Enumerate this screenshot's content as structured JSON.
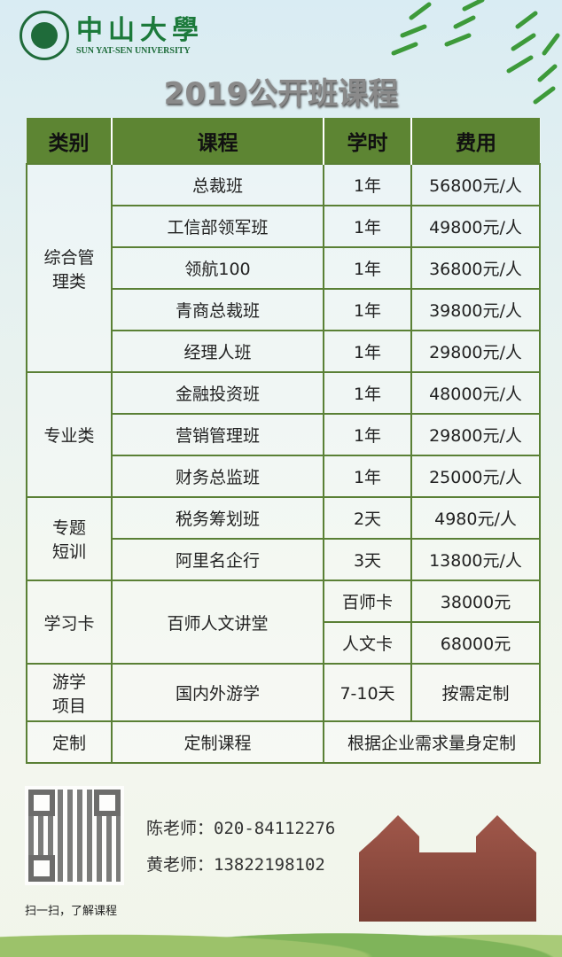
{
  "logo": {
    "cn": "中山大學",
    "en": "SUN YAT-SEN UNIVERSITY"
  },
  "title": "2019公开班课程",
  "table": {
    "headers": [
      "类别",
      "课程",
      "学时",
      "费用"
    ],
    "groups": {
      "g1": "综合管理类",
      "g2": "专业类",
      "g3": "专题短训",
      "g4": "学习卡",
      "g5": "游学项目",
      "g6": "定制"
    },
    "rows": [
      {
        "course": "总裁班",
        "hours": "1年",
        "fee": "56800元/人"
      },
      {
        "course": "工信部领军班",
        "hours": "1年",
        "fee": "49800元/人"
      },
      {
        "course": "领航100",
        "hours": "1年",
        "fee": "36800元/人"
      },
      {
        "course": "青商总裁班",
        "hours": "1年",
        "fee": "39800元/人"
      },
      {
        "course": "经理人班",
        "hours": "1年",
        "fee": "29800元/人"
      },
      {
        "course": "金融投资班",
        "hours": "1年",
        "fee": "48000元/人"
      },
      {
        "course": "营销管理班",
        "hours": "1年",
        "fee": "29800元/人"
      },
      {
        "course": "财务总监班",
        "hours": "1年",
        "fee": "25000元/人"
      },
      {
        "course": "税务筹划班",
        "hours": "2天",
        "fee": "4980元/人"
      },
      {
        "course": "阿里名企行",
        "hours": "3天",
        "fee": "13800元/人"
      },
      {
        "course": "百师人文讲堂",
        "hours": "百师卡",
        "fee": "38000元"
      },
      {
        "course": "",
        "hours": "人文卡",
        "fee": "68000元"
      },
      {
        "course": "国内外游学",
        "hours": "7-10天",
        "fee": "按需定制"
      },
      {
        "course": "定制课程",
        "hours": "根据企业需求量身定制",
        "fee": ""
      }
    ]
  },
  "footer": {
    "scan_text": "扫一扫，了解课程",
    "contact1": "陈老师：020-84112276",
    "contact2": "黄老师：13822198102"
  }
}
